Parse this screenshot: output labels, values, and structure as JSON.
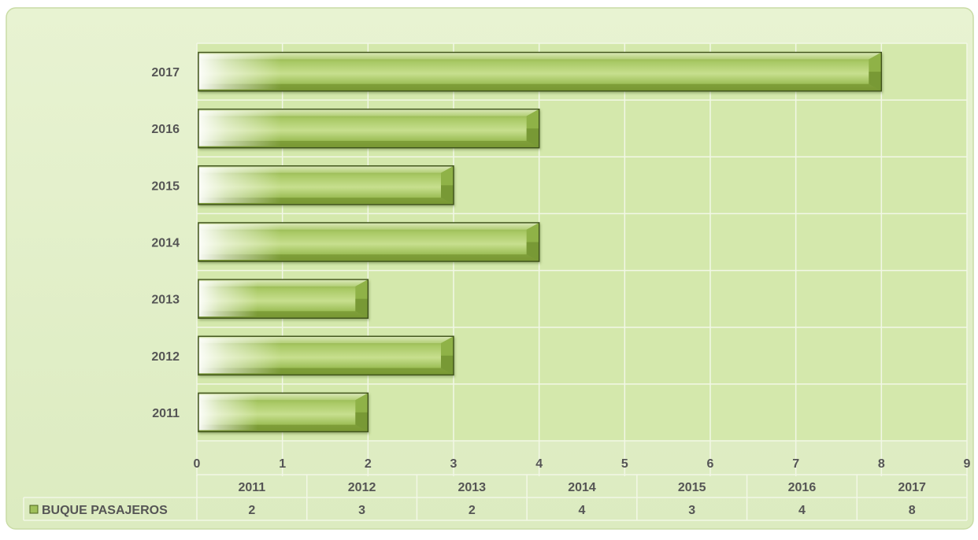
{
  "chart_data": {
    "type": "bar",
    "orientation": "horizontal",
    "categories": [
      "2011",
      "2012",
      "2013",
      "2014",
      "2015",
      "2016",
      "2017"
    ],
    "series": [
      {
        "name": "BUQUE PASAJEROS",
        "values": [
          2,
          3,
          2,
          4,
          3,
          4,
          8
        ]
      }
    ],
    "xlim": [
      0,
      9
    ],
    "x_ticks": [
      "0",
      "1",
      "2",
      "3",
      "4",
      "5",
      "6",
      "7",
      "8",
      "9"
    ],
    "grid": true,
    "data_table": true,
    "colors": {
      "chart_area": "#e4f0cc",
      "plot_area": "#d4e8ac",
      "bar": "#a8c85c",
      "bar_dark": "#6f8f2e",
      "bar_highlight": "#f3f8e2",
      "text": "#555555",
      "gridline": "#f2f7e6"
    }
  }
}
